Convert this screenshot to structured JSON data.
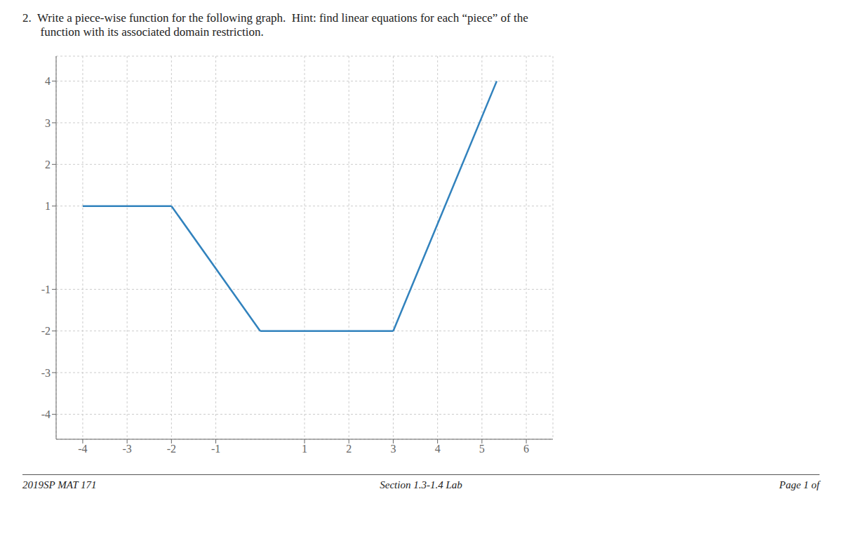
{
  "chart_data": {
    "type": "line",
    "title": "2.  Write a piece-wise function for the following graph.  Hint: find linear equations for each “piece” of the",
    "subtitle": "      function with its associated domain restriction.",
    "annotations": [
      "2019SP MAT 171",
      "Section 1.3-1.4 Lab",
      "Page 1 of"
    ],
    "series": [
      {
        "x": [
          -4,
          -2
        ],
        "values": [
          1,
          1
        ]
      },
      {
        "x": [
          -2,
          0
        ],
        "values": [
          1,
          -2
        ]
      },
      {
        "x": [
          0,
          3
        ],
        "values": [
          -2,
          -2
        ]
      },
      {
        "x": [
          3,
          5.333
        ],
        "values": [
          -2,
          4.0
        ]
      }
    ],
    "xlim": [
      -4.6,
      6.6
    ],
    "ylim": [
      -4.6,
      4.6
    ],
    "xticks": [
      -4,
      -3,
      -2,
      -1,
      1,
      2,
      3,
      4,
      5,
      6
    ],
    "yticks": [
      -4,
      -3,
      -2,
      -1,
      1,
      2,
      3,
      4
    ],
    "grid": true
  }
}
